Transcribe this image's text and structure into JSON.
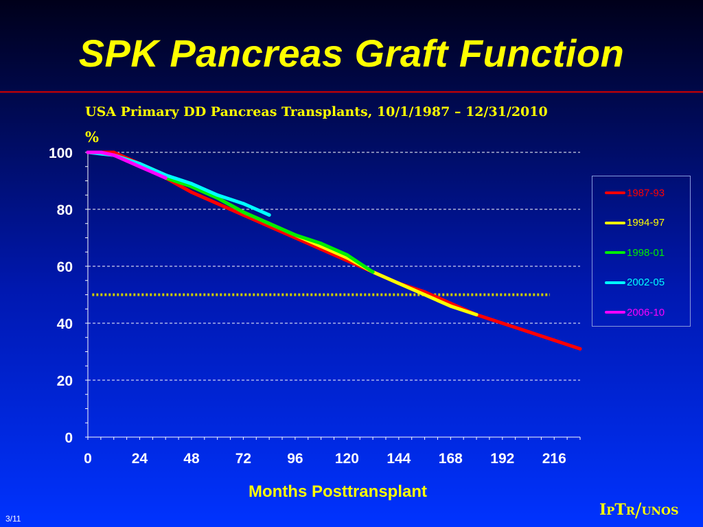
{
  "slide": {
    "title": "SPK Pancreas Graft Function",
    "subtitle": "USA Primary DD Pancreas Transplants, 10/1/1987 – 12/31/2010",
    "y_unit": "%",
    "x_axis_title": "Months Posttransplant",
    "logo_text": "IPTR/UNOS",
    "page_number": "3/11",
    "colors": {
      "title": "#ffff00",
      "rule": "#cc0000",
      "grid": "#ffffff",
      "reference_line": "#cccc00"
    }
  },
  "chart_data": {
    "type": "line",
    "title": "SPK Pancreas Graft Function",
    "subtitle": "USA Primary DD Pancreas Transplants, 10/1/1987 – 12/31/2010",
    "xlabel": "Months Posttransplant",
    "ylabel": "%",
    "xlim": [
      0,
      228
    ],
    "ylim": [
      0,
      100
    ],
    "x_ticks": [
      0,
      24,
      48,
      72,
      96,
      120,
      144,
      168,
      192,
      216
    ],
    "y_ticks": [
      0,
      20,
      40,
      60,
      80,
      100
    ],
    "grid": "horizontal dashed",
    "reference_line": {
      "y": 50,
      "x_range": [
        2,
        214
      ],
      "style": "dotted"
    },
    "legend_position": "right",
    "series": [
      {
        "name": "1987-93",
        "color": "#ff0000",
        "x": [
          0,
          12,
          24,
          36,
          48,
          60,
          72,
          84,
          96,
          108,
          120,
          132,
          144,
          156,
          168,
          180,
          192,
          204,
          216,
          228
        ],
        "y": [
          100,
          100,
          96,
          91,
          86,
          82,
          78,
          74,
          70,
          66,
          62,
          58,
          54,
          51,
          47,
          43,
          40,
          37,
          34,
          31
        ]
      },
      {
        "name": "1994-97",
        "color": "#ffff00",
        "x": [
          12,
          24,
          36,
          48,
          60,
          72,
          84,
          96,
          108,
          120,
          132,
          144,
          156,
          168,
          180
        ],
        "y": [
          99,
          96,
          92,
          88,
          84,
          79,
          75,
          71,
          67,
          63,
          58,
          54,
          50,
          46,
          43
        ]
      },
      {
        "name": "1998-01",
        "color": "#00ee00",
        "x": [
          36,
          48,
          60,
          72,
          84,
          96,
          108,
          120,
          132
        ],
        "y": [
          91,
          88,
          84,
          79,
          75,
          71,
          68,
          64,
          58
        ]
      },
      {
        "name": "2002-05",
        "color": "#00ffff",
        "x": [
          0,
          12,
          24,
          36,
          48,
          60,
          72,
          84
        ],
        "y": [
          100,
          99,
          96,
          92,
          89,
          85,
          82,
          78
        ]
      },
      {
        "name": "2006-10",
        "color": "#ff00ff",
        "x": [
          0,
          6,
          12,
          18,
          24,
          30,
          36
        ],
        "y": [
          100,
          100,
          99,
          97,
          95,
          93,
          91
        ]
      }
    ]
  }
}
